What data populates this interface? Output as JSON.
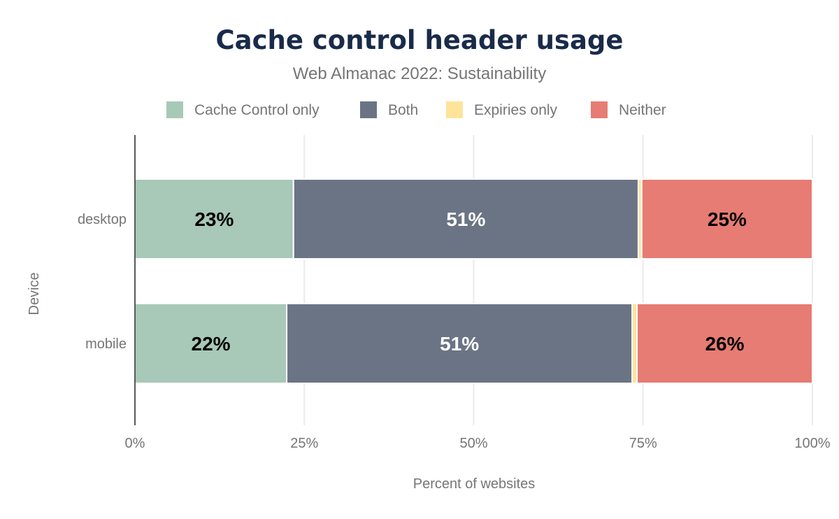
{
  "chart_data": {
    "type": "bar",
    "orientation": "horizontal",
    "stacked": true,
    "title": "Cache control header usage",
    "subtitle": "Web Almanac 2022: Sustainability",
    "xlabel": "Percent of websites",
    "ylabel": "Device",
    "xlim": [
      0,
      100
    ],
    "xticks": [
      "0%",
      "25%",
      "50%",
      "75%",
      "100%"
    ],
    "grid": true,
    "legend_position": "top",
    "categories": [
      "desktop",
      "mobile"
    ],
    "series": [
      {
        "name": "Cache Control only",
        "color": "#a8c8b8",
        "label_color": "#000000",
        "values": [
          23.4,
          22.4
        ],
        "labels": [
          "23%",
          "22%"
        ]
      },
      {
        "name": "Both",
        "color": "#6b7485",
        "label_color": "#ffffff",
        "values": [
          50.9,
          51.0
        ],
        "labels": [
          "51%",
          "51%"
        ]
      },
      {
        "name": "Expiries only",
        "color": "#fde49a",
        "label_color": "#000000",
        "values": [
          0.5,
          0.7
        ],
        "labels": [
          "",
          ""
        ]
      },
      {
        "name": "Neither",
        "color": "#e67c73",
        "label_color": "#000000",
        "values": [
          25.2,
          25.9
        ],
        "labels": [
          "25%",
          "26%"
        ]
      }
    ]
  }
}
